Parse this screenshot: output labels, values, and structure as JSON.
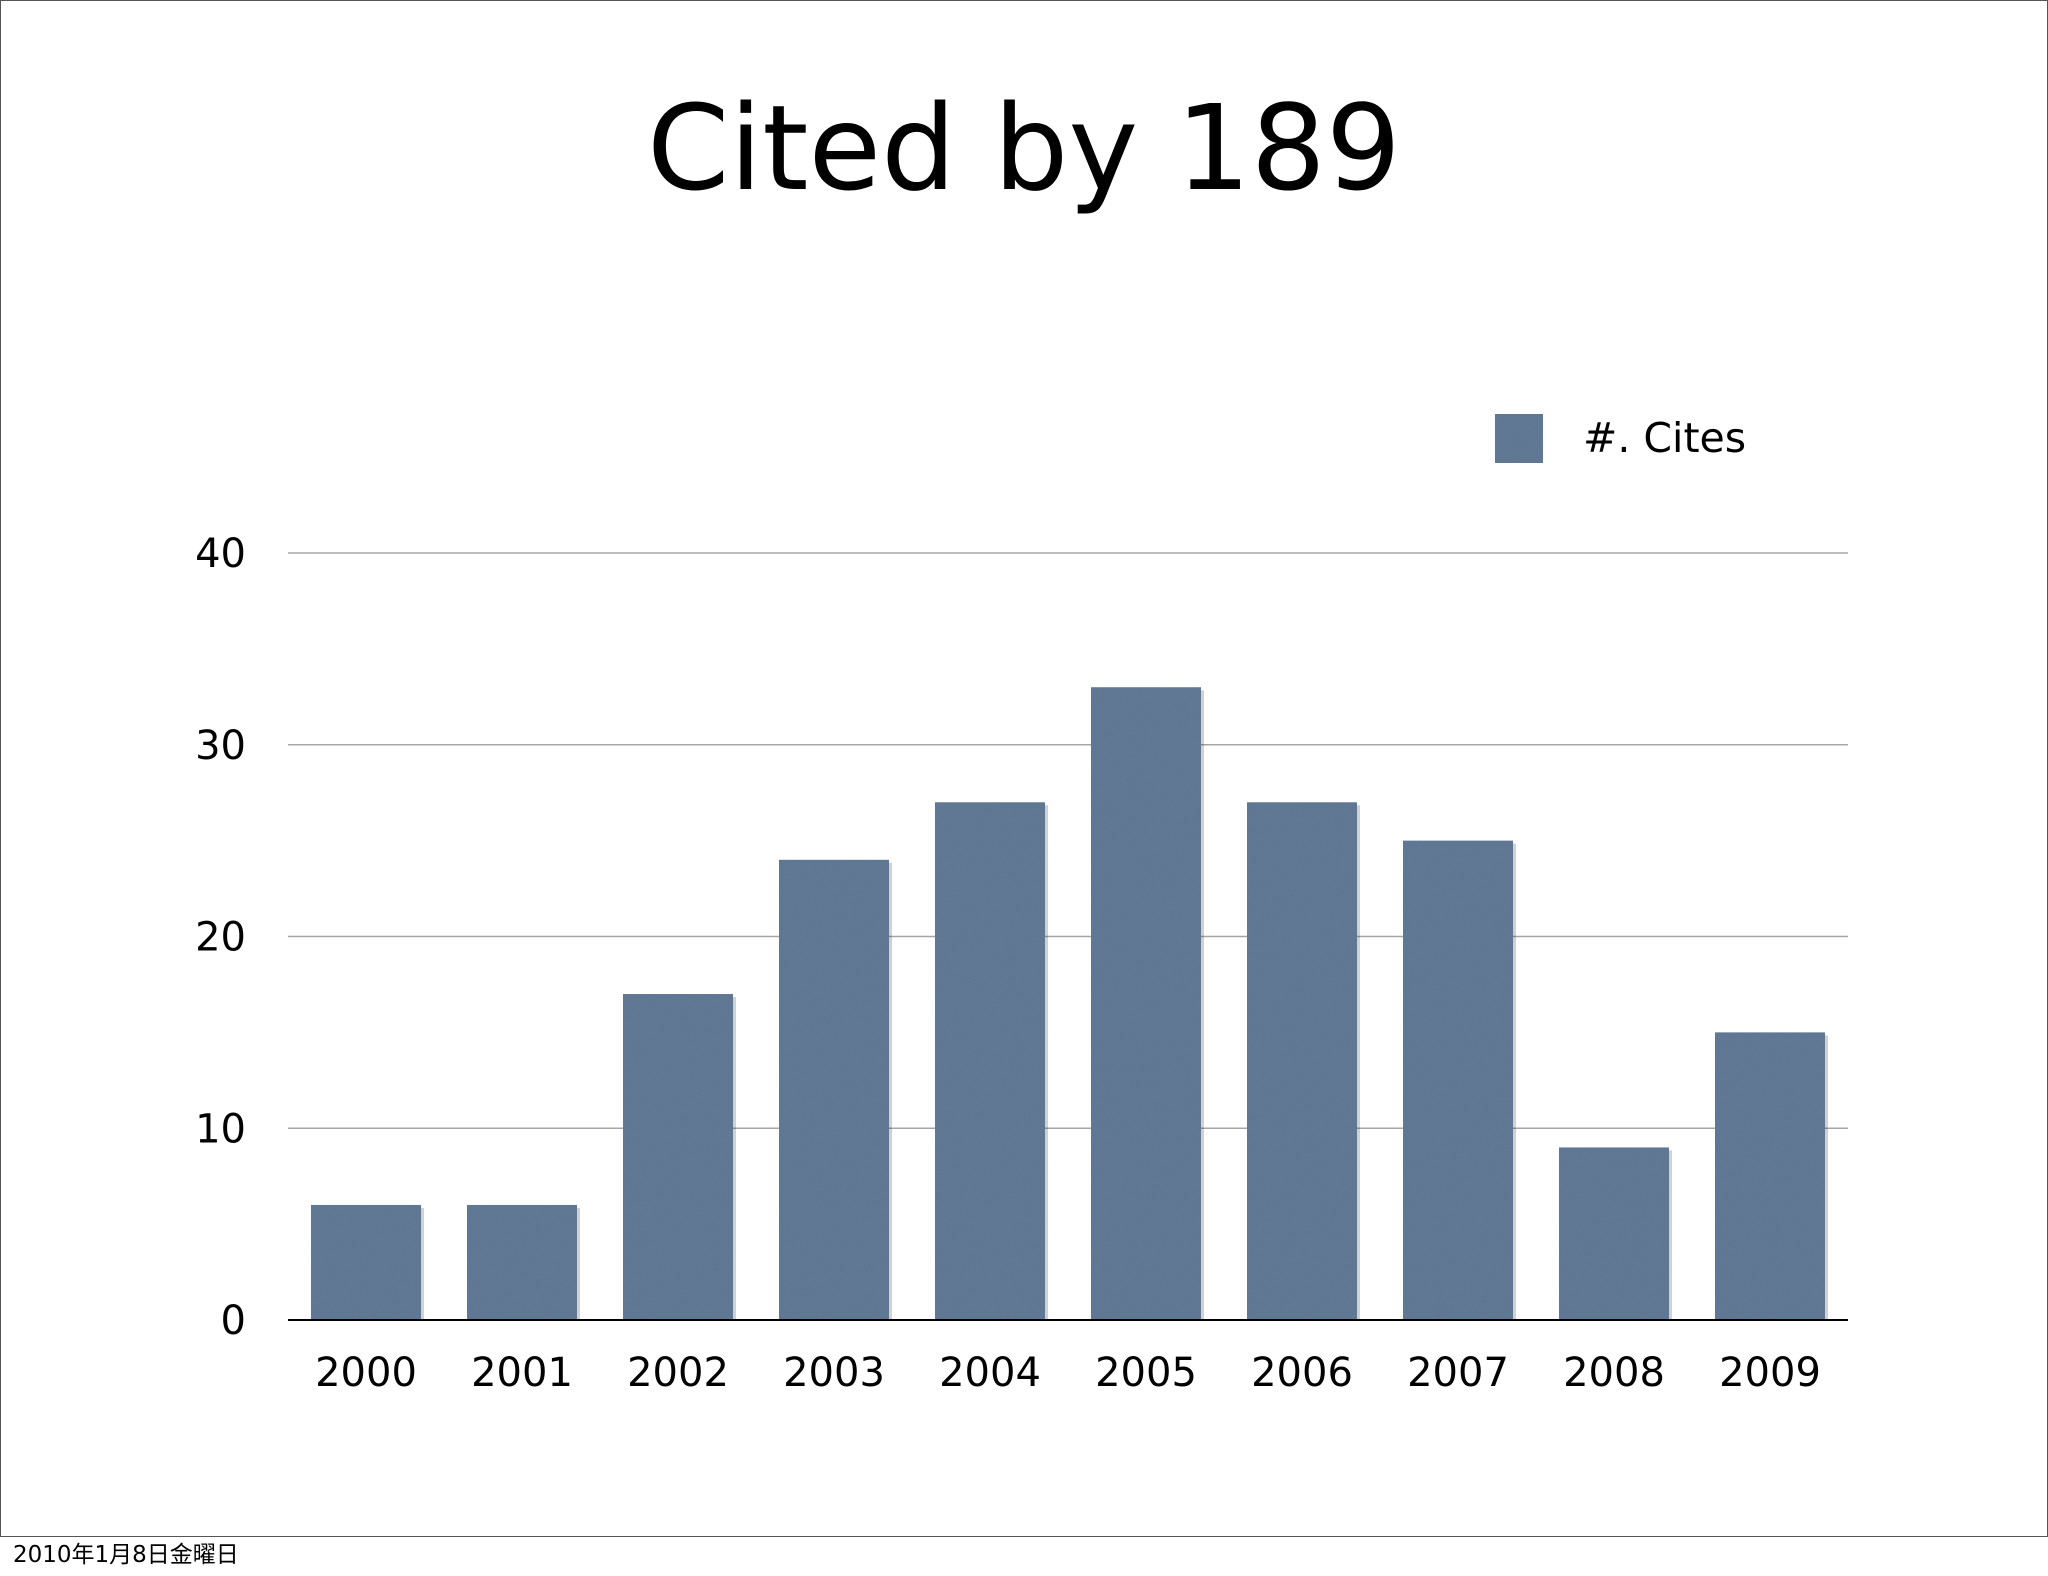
{
  "slide": {
    "title": "Cited by 189",
    "footer_date": "2010年1月8日金曜日"
  },
  "chart_data": {
    "type": "bar",
    "title": "Cited by 189",
    "xlabel": "",
    "ylabel": "",
    "categories": [
      "2000",
      "2001",
      "2002",
      "2003",
      "2004",
      "2005",
      "2006",
      "2007",
      "2008",
      "2009"
    ],
    "series": [
      {
        "name": "#. Cites",
        "values": [
          6,
          6,
          17,
          24,
          27,
          33,
          27,
          25,
          9,
          15
        ],
        "color": "#627a96"
      }
    ],
    "ylim": [
      0,
      40
    ],
    "yticks": [
      "0",
      "10",
      "20",
      "30",
      "40"
    ],
    "grid": true,
    "legend_position": "top-right",
    "colors": {
      "bar": "#627a96",
      "grid": "#a6a6a6",
      "axis": "#000000"
    }
  }
}
